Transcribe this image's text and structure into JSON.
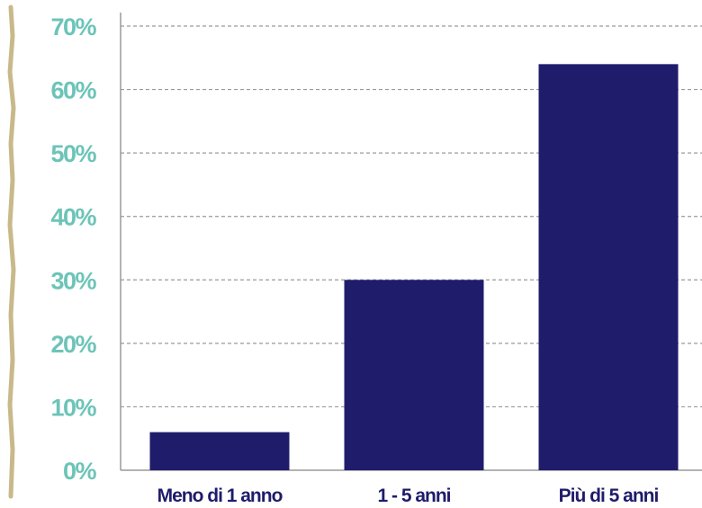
{
  "chart_data": {
    "type": "bar",
    "categories": [
      "Meno di 1 anno",
      "1 - 5 anni",
      "Più di 5 anni"
    ],
    "values": [
      6,
      30,
      64
    ],
    "y_ticks": [
      "0%",
      "10%",
      "20%",
      "30%",
      "40%",
      "50%",
      "60%",
      "70%"
    ],
    "ylim": [
      0,
      70
    ],
    "grid": true,
    "colors": {
      "bar": "#201c6c",
      "ytick_text": "#6cc4b8",
      "xtick_text": "#1f1c6b",
      "grid": "#9a9a9a",
      "axis": "#9a9a9a",
      "decor_border": "#c9b98a"
    }
  }
}
